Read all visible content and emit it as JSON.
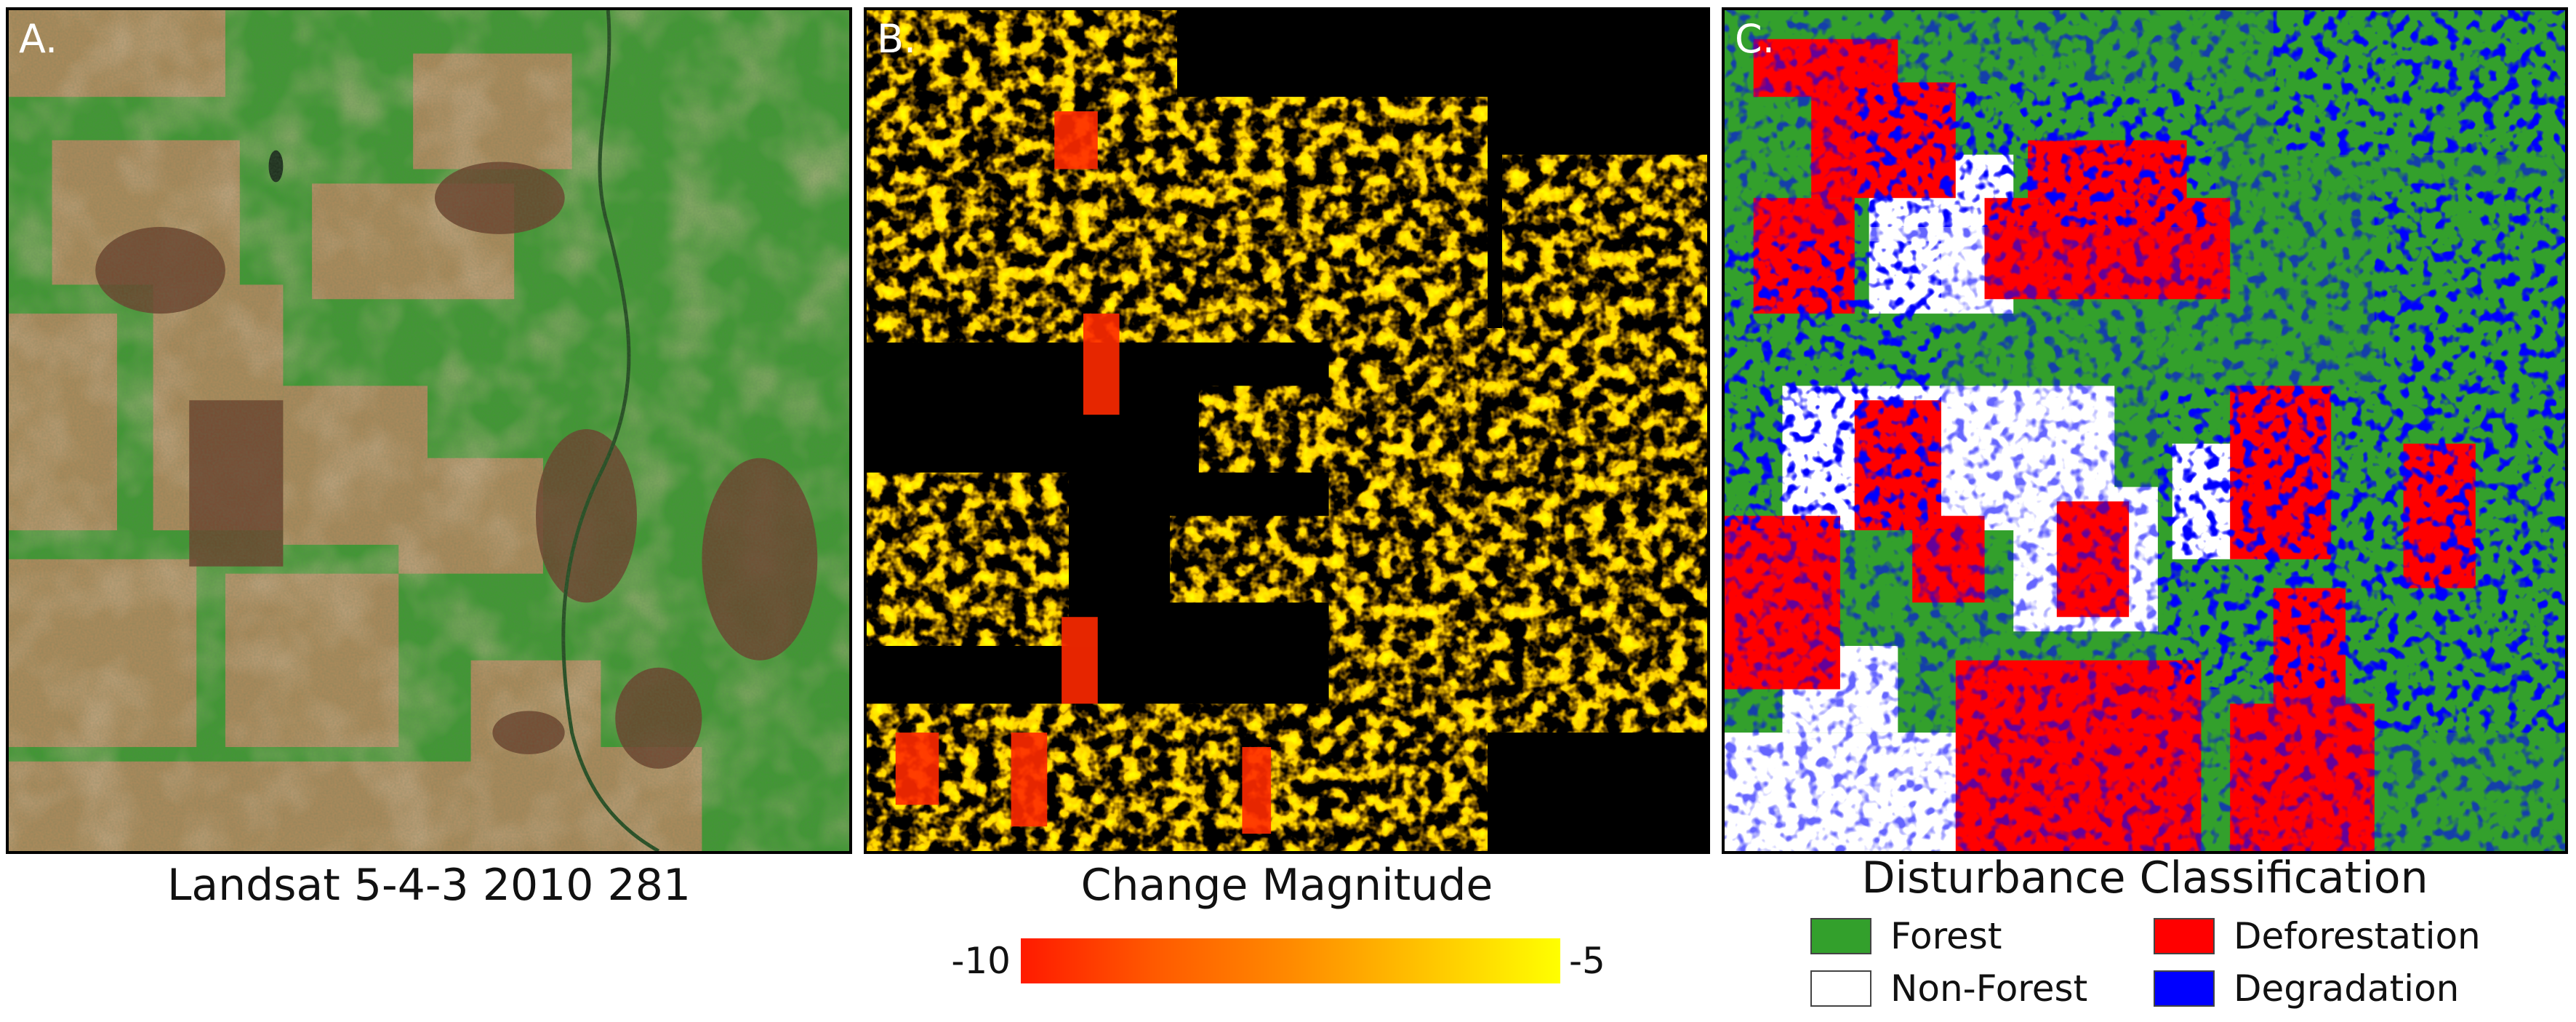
{
  "panels": {
    "a": {
      "letter": "A.",
      "caption": "Landsat 5-4-3 2010 281"
    },
    "b": {
      "letter": "B.",
      "caption": "Change Magnitude"
    },
    "c": {
      "letter": "C.",
      "caption": "Disturbance Classification"
    }
  },
  "colorbar": {
    "min_label": "-10",
    "max_label": "-5",
    "colors": [
      "#ff1a00",
      "#ff8a00",
      "#ffff00"
    ]
  },
  "legend": {
    "items": [
      {
        "label": "Forest",
        "color": "#33a02c"
      },
      {
        "label": "Non-Forest",
        "color": "#ffffff"
      },
      {
        "label": "Deforestation",
        "color": "#ff0000"
      },
      {
        "label": "Degradation",
        "color": "#0000ff"
      }
    ]
  },
  "colors": {
    "forest_green": "#3e9a2e",
    "bare_tan": "#b98a5c",
    "burn_brown": "#6b3a2a",
    "background_black": "#000000"
  }
}
